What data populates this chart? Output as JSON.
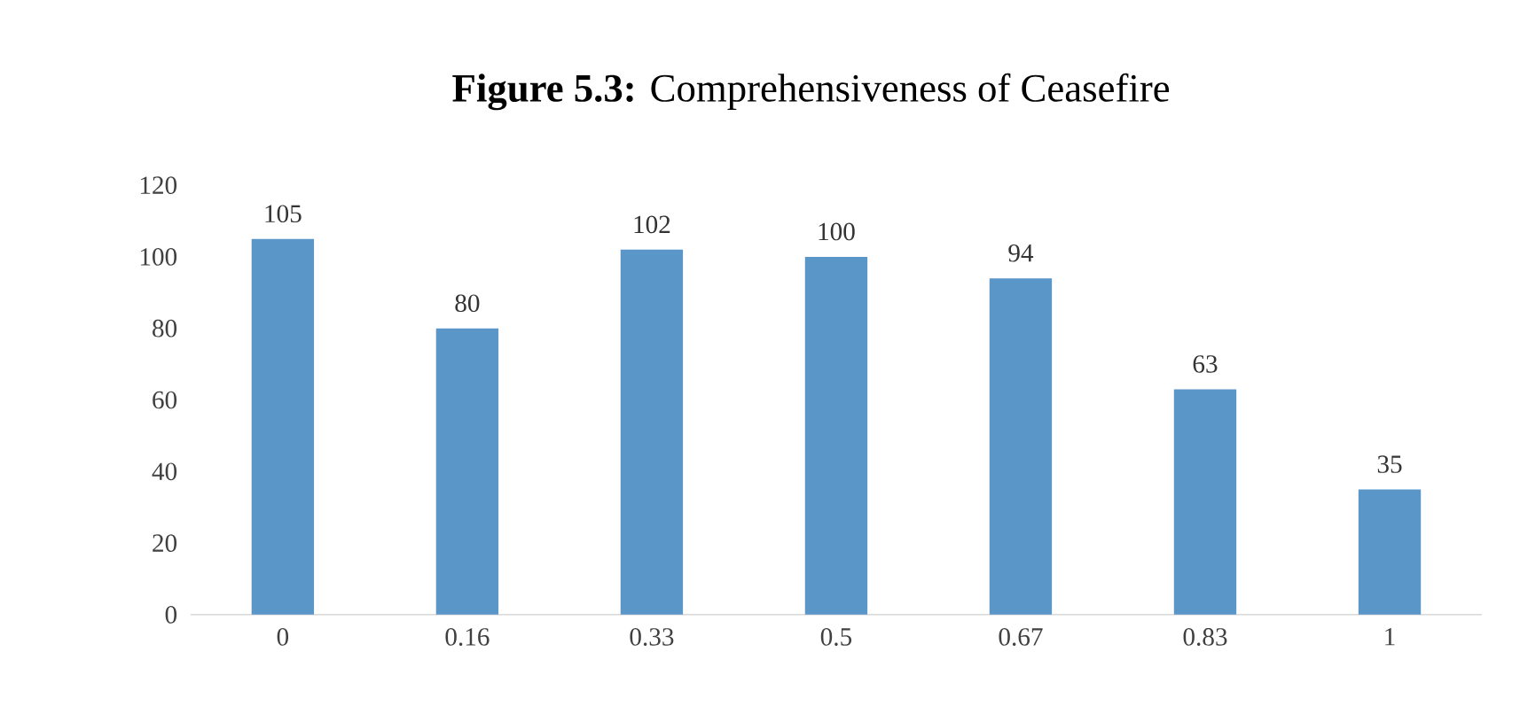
{
  "chart_data": {
    "type": "bar",
    "title": "**Figure 5.3:** Comprehensiveness of Ceasefire",
    "categories": [
      "0",
      "0.16",
      "0.33",
      "0.5",
      "0.67",
      "0.83",
      "1"
    ],
    "values": [
      105,
      80,
      102,
      100,
      94,
      63,
      35
    ],
    "color": "#5b96c9",
    "ylim": [
      0,
      120
    ],
    "yticks": [
      0,
      20,
      40,
      60,
      80,
      100,
      120
    ],
    "data_labels": true
  }
}
